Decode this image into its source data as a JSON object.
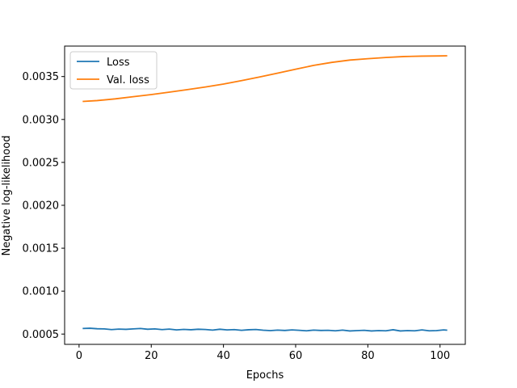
{
  "chart_data": {
    "type": "line",
    "title": "",
    "xlabel": "Epochs",
    "ylabel": "Negative log-likelihood",
    "xlim": [
      -4,
      107
    ],
    "ylim": [
      0.00038,
      0.003855
    ],
    "x_ticks": [
      {
        "value": 0,
        "label": "0"
      },
      {
        "value": 20,
        "label": "20"
      },
      {
        "value": 40,
        "label": "40"
      },
      {
        "value": 60,
        "label": "60"
      },
      {
        "value": 80,
        "label": "80"
      },
      {
        "value": 100,
        "label": "100"
      }
    ],
    "y_ticks": [
      {
        "value": 0.0005,
        "label": "0.0005"
      },
      {
        "value": 0.001,
        "label": "0.0010"
      },
      {
        "value": 0.0015,
        "label": "0.0015"
      },
      {
        "value": 0.002,
        "label": "0.0020"
      },
      {
        "value": 0.0025,
        "label": "0.0025"
      },
      {
        "value": 0.003,
        "label": "0.0030"
      },
      {
        "value": 0.0035,
        "label": "0.0035"
      }
    ],
    "grid": false,
    "legend": {
      "placement": "top-left"
    },
    "series": [
      {
        "name": "Loss",
        "color": "#1f77b4",
        "x": [
          1,
          3,
          5,
          7,
          9,
          11,
          13,
          15,
          17,
          19,
          21,
          23,
          25,
          27,
          29,
          31,
          33,
          35,
          37,
          39,
          41,
          43,
          45,
          47,
          49,
          51,
          53,
          55,
          57,
          59,
          61,
          63,
          65,
          67,
          69,
          71,
          73,
          75,
          77,
          79,
          81,
          83,
          85,
          87,
          89,
          91,
          93,
          95,
          97,
          99,
          101,
          102
        ],
        "y": [
          0.000565,
          0.000568,
          0.000562,
          0.00056,
          0.000552,
          0.000558,
          0.000555,
          0.00056,
          0.000565,
          0.000556,
          0.00056,
          0.000552,
          0.000558,
          0.000548,
          0.000554,
          0.00055,
          0.000556,
          0.000553,
          0.000546,
          0.000556,
          0.000548,
          0.000552,
          0.000544,
          0.00055,
          0.000553,
          0.000545,
          0.00054,
          0.000546,
          0.000542,
          0.000548,
          0.000544,
          0.000538,
          0.000546,
          0.000542,
          0.000544,
          0.000538,
          0.000546,
          0.000536,
          0.00054,
          0.000544,
          0.000536,
          0.00054,
          0.000538,
          0.00055,
          0.000536,
          0.00054,
          0.000538,
          0.000548,
          0.000538,
          0.00054,
          0.000548,
          0.000545
        ]
      },
      {
        "name": "Val. loss",
        "color": "#ff7f0e",
        "x": [
          1,
          5,
          10,
          15,
          20,
          25,
          30,
          35,
          40,
          45,
          50,
          55,
          60,
          65,
          70,
          75,
          80,
          85,
          90,
          95,
          100,
          102
        ],
        "y": [
          0.00321,
          0.00322,
          0.00324,
          0.003265,
          0.00329,
          0.003318,
          0.003348,
          0.003378,
          0.003412,
          0.003452,
          0.003495,
          0.00354,
          0.003585,
          0.00363,
          0.003665,
          0.003692,
          0.003708,
          0.003722,
          0.003733,
          0.003738,
          0.00374,
          0.003742
        ]
      }
    ]
  }
}
